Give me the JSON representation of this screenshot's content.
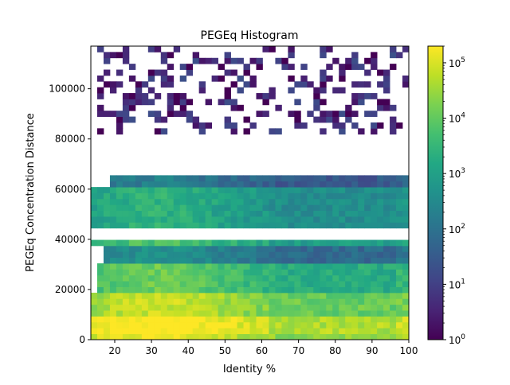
{
  "chart_data": {
    "type": "heatmap",
    "title": "PEGEq Histogram",
    "xlabel": "Identity %",
    "ylabel": "PEGEq Concentration Distance",
    "xlim": [
      13.5,
      100
    ],
    "ylim": [
      0,
      117000
    ],
    "x_ticks": [
      "20",
      "30",
      "40",
      "50",
      "60",
      "70",
      "80",
      "90",
      "100"
    ],
    "y_ticks": [
      "0",
      "20000",
      "40000",
      "60000",
      "80000",
      "100000"
    ],
    "colorbar": {
      "scale": "log",
      "range": [
        1,
        200000
      ],
      "ticks": [
        {
          "value": 1,
          "base": "10",
          "exp": "0"
        },
        {
          "value": 10,
          "base": "10",
          "exp": "1"
        },
        {
          "value": 100,
          "base": "10",
          "exp": "2"
        },
        {
          "value": 1000,
          "base": "10",
          "exp": "3"
        },
        {
          "value": 10000,
          "base": "10",
          "exp": "4"
        },
        {
          "value": 100000,
          "base": "10",
          "exp": "5"
        }
      ]
    },
    "colormap": "viridis",
    "bins": {
      "nx": 50,
      "ny": 50,
      "x_start": 13.5,
      "x_end": 100,
      "y_start": 0,
      "y_end": 117000
    },
    "regions": [
      {
        "y": [
          0,
          2340
        ],
        "x": [
          13.5,
          100
        ],
        "count": 50000
      },
      {
        "y": [
          2340,
          9360
        ],
        "x": [
          13.5,
          100
        ],
        "count": 100000
      },
      {
        "y": [
          9360,
          18720
        ],
        "x": [
          13.5,
          100
        ],
        "count": 25000
      },
      {
        "y": [
          18720,
          30420
        ],
        "x": [
          15,
          100
        ],
        "count": 4000
      },
      {
        "y": [
          30420,
          37440
        ],
        "x": [
          17,
          100
        ],
        "count": 150
      },
      {
        "y": [
          37440,
          39780
        ],
        "x": [
          13.5,
          100
        ],
        "count": 2000
      },
      {
        "y": [
          39780,
          44460
        ],
        "x": [
          13.5,
          100
        ],
        "count": 0
      },
      {
        "y": [
          44460,
          60840
        ],
        "x": [
          14,
          100
        ],
        "count": 800
      },
      {
        "y": [
          60840,
          65520
        ],
        "x": [
          18,
          100
        ],
        "count": 60
      },
      {
        "y": [
          65520,
          81900
        ],
        "x": [
          13.5,
          100
        ],
        "count": 0
      },
      {
        "y": [
          81900,
          117000
        ],
        "x": [
          16,
          100
        ],
        "count": 4
      }
    ]
  }
}
